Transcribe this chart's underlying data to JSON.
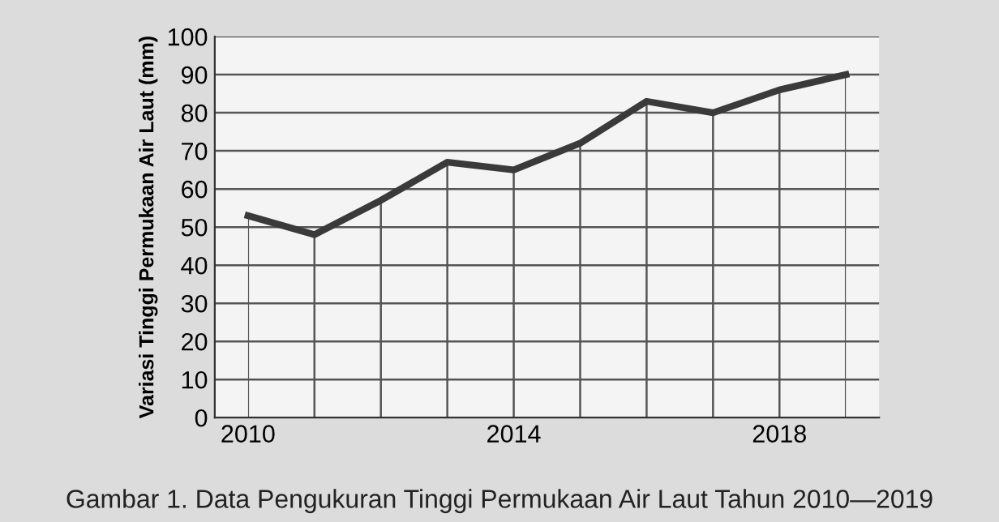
{
  "chart_data": {
    "type": "line",
    "ylabel": "Variasi Tinggi Permukaan Air Laut (mm)",
    "annotations": [
      "Gambar 1. Data Pengukuran Tinggi Permukaan Air Laut Tahun 2010—2019"
    ],
    "x": [
      2010,
      2011,
      2012,
      2013,
      2014,
      2015,
      2016,
      2017,
      2018,
      2019
    ],
    "series": [
      {
        "color": "#3a3a3a",
        "values": [
          53,
          48,
          57,
          67,
          65,
          72,
          83,
          80,
          86,
          90
        ]
      }
    ],
    "xlim": [
      2009.5,
      2019.5
    ],
    "xticks": [
      2010,
      {
        "value": 2011,
        "label": null
      },
      {
        "value": 2012,
        "label": null
      },
      {
        "value": 2013,
        "label": null
      },
      2014,
      {
        "value": 2015,
        "label": null
      },
      {
        "value": 2016,
        "label": null
      },
      {
        "value": 2017,
        "label": null
      },
      2018,
      {
        "value": 2019,
        "label": null
      }
    ],
    "ylim": [
      0,
      100
    ],
    "yticks": [
      0,
      10,
      20,
      30,
      40,
      50,
      60,
      70,
      80,
      90,
      100
    ],
    "grid": true,
    "line_style": "solid",
    "marker": "none",
    "legend": false
  }
}
